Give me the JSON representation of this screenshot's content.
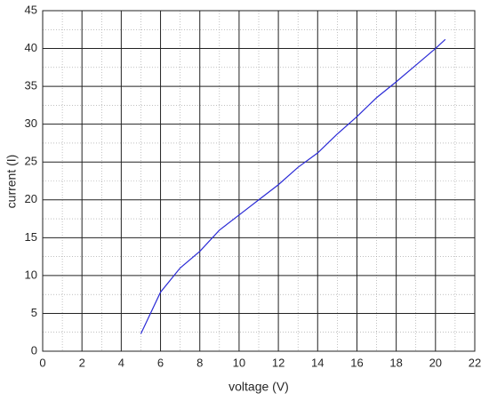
{
  "chart_data": {
    "type": "line",
    "x_label": "voltage (V)",
    "y_label": "current (I)",
    "x": [
      5,
      6,
      7,
      8,
      9,
      10,
      11,
      12,
      13,
      14,
      15,
      16,
      17,
      18,
      19,
      20,
      20.5
    ],
    "series": [
      {
        "color": "#2b2bd6",
        "values": [
          2.3,
          7.8,
          11,
          13.2,
          16,
          18,
          20,
          22,
          24.3,
          26.2,
          28.7,
          31,
          33.5,
          35.6,
          37.8,
          40,
          41.2
        ]
      }
    ],
    "xlim": [
      0,
      22
    ],
    "xticks": [
      0,
      2,
      4,
      6,
      8,
      10,
      12,
      14,
      16,
      18,
      20,
      22
    ],
    "ylim": [
      0,
      45
    ],
    "yticks": [
      0,
      5,
      10,
      15,
      20,
      25,
      30,
      35,
      40,
      45
    ],
    "grid": true,
    "minor_grid": true
  }
}
